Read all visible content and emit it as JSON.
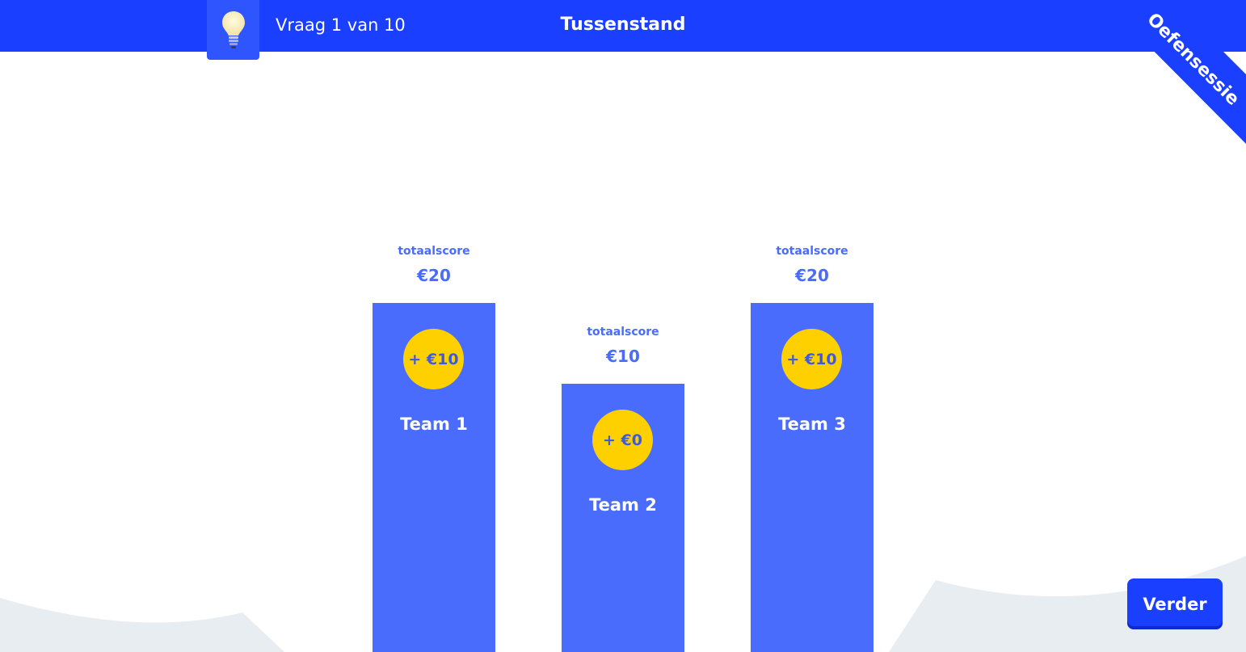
{
  "header": {
    "question_counter": "Vraag 1 van 10",
    "title": "Tussenstand",
    "ribbon_text": "Oefensessie",
    "hint_icon": "lightbulb-icon"
  },
  "scoreboard": {
    "total_caption": "totaalscore",
    "teams": [
      {
        "name": "Team 1",
        "total": "€20",
        "round_gain": "+ €10"
      },
      {
        "name": "Team 2",
        "total": "€10",
        "round_gain": "+ €0"
      },
      {
        "name": "Team 3",
        "total": "€20",
        "round_gain": "+ €10"
      }
    ]
  },
  "actions": {
    "continue_label": "Verder"
  },
  "colors": {
    "brand_blue": "#1a3fff",
    "podium_blue": "#4a6cfc",
    "coin_yellow": "#ffd000",
    "hill_gray": "#e8edf2"
  }
}
